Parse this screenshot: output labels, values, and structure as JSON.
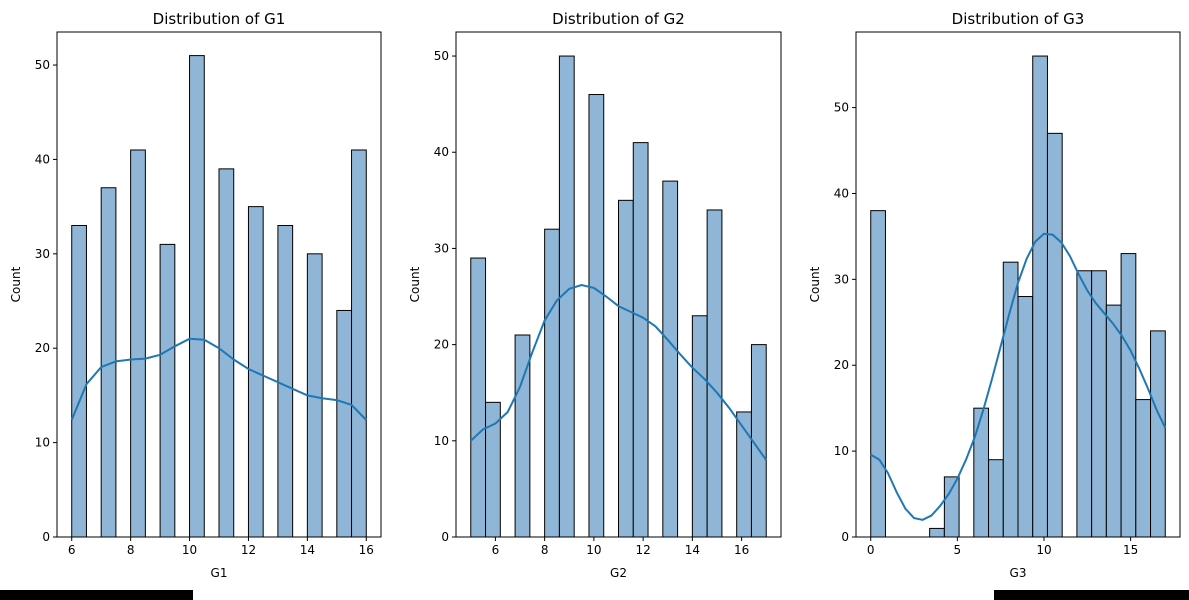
{
  "colors": {
    "bar_fill": "#8fb6d6",
    "bar_edge": "#000000",
    "kde": "#1f77b4"
  },
  "chart_data": [
    {
      "type": "bar",
      "title": "Distribution of G1",
      "xlabel": "G1",
      "ylabel": "Count",
      "xlim": [
        5.5,
        16.5
      ],
      "ylim": [
        0,
        53.5
      ],
      "xticks": [
        6,
        8,
        10,
        12,
        14,
        16
      ],
      "yticks": [
        0,
        10,
        20,
        30,
        40,
        50
      ],
      "bin_width": 0.5,
      "bins": [
        {
          "x0": 6.0,
          "count": 33
        },
        {
          "x0": 7.0,
          "count": 37
        },
        {
          "x0": 8.0,
          "count": 41
        },
        {
          "x0": 9.0,
          "count": 31
        },
        {
          "x0": 10.0,
          "count": 51
        },
        {
          "x0": 11.0,
          "count": 39
        },
        {
          "x0": 12.0,
          "count": 35
        },
        {
          "x0": 13.0,
          "count": 33
        },
        {
          "x0": 14.0,
          "count": 30
        },
        {
          "x0": 15.0,
          "count": 24
        },
        {
          "x0": 15.5,
          "count": 41
        }
      ],
      "kde": [
        [
          6,
          12.4
        ],
        [
          6.5,
          16.2
        ],
        [
          7,
          18.0
        ],
        [
          7.5,
          18.6
        ],
        [
          8,
          18.8
        ],
        [
          8.5,
          18.9
        ],
        [
          9,
          19.3
        ],
        [
          9.5,
          20.2
        ],
        [
          10,
          21.0
        ],
        [
          10.5,
          20.9
        ],
        [
          11,
          20.0
        ],
        [
          11.5,
          18.8
        ],
        [
          12,
          17.8
        ],
        [
          12.5,
          17.1
        ],
        [
          13,
          16.4
        ],
        [
          13.5,
          15.7
        ],
        [
          14,
          15.0
        ],
        [
          14.5,
          14.7
        ],
        [
          15,
          14.5
        ],
        [
          15.5,
          14.0
        ],
        [
          16,
          12.4
        ]
      ],
      "grid": false
    },
    {
      "type": "bar",
      "title": "Distribution of G2",
      "xlabel": "G2",
      "ylabel": "Count",
      "xlim": [
        4.4,
        17.6
      ],
      "ylim": [
        0,
        52.5
      ],
      "xticks": [
        6,
        8,
        10,
        12,
        14,
        16
      ],
      "yticks": [
        0,
        10,
        20,
        30,
        40,
        50
      ],
      "bin_width": 0.6,
      "bins": [
        {
          "x0": 5.0,
          "count": 29
        },
        {
          "x0": 5.6,
          "count": 14
        },
        {
          "x0": 6.8,
          "count": 21
        },
        {
          "x0": 8.0,
          "count": 32
        },
        {
          "x0": 8.6,
          "count": 50
        },
        {
          "x0": 9.8,
          "count": 46
        },
        {
          "x0": 11.0,
          "count": 35
        },
        {
          "x0": 11.6,
          "count": 41
        },
        {
          "x0": 12.8,
          "count": 37
        },
        {
          "x0": 14.0,
          "count": 23
        },
        {
          "x0": 14.6,
          "count": 34
        },
        {
          "x0": 15.8,
          "count": 13
        },
        {
          "x0": 16.4,
          "count": 20
        }
      ],
      "kde": [
        [
          5,
          10.0
        ],
        [
          5.5,
          11.2
        ],
        [
          6,
          11.8
        ],
        [
          6.5,
          13.0
        ],
        [
          7,
          15.6
        ],
        [
          7.5,
          19.2
        ],
        [
          8,
          22.5
        ],
        [
          8.5,
          24.6
        ],
        [
          9,
          25.8
        ],
        [
          9.5,
          26.2
        ],
        [
          10,
          25.9
        ],
        [
          10.5,
          25.0
        ],
        [
          11,
          24.0
        ],
        [
          11.5,
          23.4
        ],
        [
          12,
          22.8
        ],
        [
          12.5,
          21.9
        ],
        [
          13,
          20.5
        ],
        [
          13.5,
          19.0
        ],
        [
          14,
          17.6
        ],
        [
          14.5,
          16.4
        ],
        [
          15,
          15.0
        ],
        [
          15.5,
          13.4
        ],
        [
          16,
          11.6
        ],
        [
          16.5,
          9.8
        ],
        [
          17,
          8.0
        ]
      ],
      "grid": false
    },
    {
      "type": "bar",
      "title": "Distribution of G3",
      "xlabel": "G3",
      "ylabel": "Count",
      "xlim": [
        -0.85,
        17.85
      ],
      "ylim": [
        0,
        58.8
      ],
      "xticks": [
        0,
        5,
        10,
        15
      ],
      "yticks": [
        0,
        10,
        20,
        30,
        40,
        50
      ],
      "bin_width": 0.85,
      "bins": [
        {
          "x0": 0.0,
          "count": 38
        },
        {
          "x0": 3.4,
          "count": 1
        },
        {
          "x0": 4.25,
          "count": 7
        },
        {
          "x0": 5.95,
          "count": 15
        },
        {
          "x0": 6.8,
          "count": 9
        },
        {
          "x0": 7.65,
          "count": 32
        },
        {
          "x0": 8.5,
          "count": 28
        },
        {
          "x0": 9.35,
          "count": 56
        },
        {
          "x0": 10.2,
          "count": 47
        },
        {
          "x0": 11.9,
          "count": 31
        },
        {
          "x0": 12.75,
          "count": 31
        },
        {
          "x0": 13.6,
          "count": 27
        },
        {
          "x0": 14.45,
          "count": 33
        },
        {
          "x0": 15.3,
          "count": 16
        },
        {
          "x0": 16.15,
          "count": 24
        }
      ],
      "kde": [
        [
          0,
          9.6
        ],
        [
          0.5,
          9.0
        ],
        [
          1,
          7.4
        ],
        [
          1.5,
          5.2
        ],
        [
          2,
          3.3
        ],
        [
          2.5,
          2.2
        ],
        [
          3,
          2.0
        ],
        [
          3.5,
          2.5
        ],
        [
          4,
          3.6
        ],
        [
          4.5,
          5.0
        ],
        [
          5,
          6.8
        ],
        [
          5.5,
          9.0
        ],
        [
          6,
          11.6
        ],
        [
          6.5,
          14.8
        ],
        [
          7,
          18.4
        ],
        [
          7.5,
          22.2
        ],
        [
          8,
          26.0
        ],
        [
          8.5,
          29.6
        ],
        [
          9,
          32.4
        ],
        [
          9.5,
          34.4
        ],
        [
          10,
          35.3
        ],
        [
          10.5,
          35.2
        ],
        [
          11,
          34.3
        ],
        [
          11.5,
          32.7
        ],
        [
          12,
          30.6
        ],
        [
          12.5,
          28.7
        ],
        [
          13,
          27.2
        ],
        [
          13.5,
          26.0
        ],
        [
          14,
          24.8
        ],
        [
          14.5,
          23.4
        ],
        [
          15,
          21.7
        ],
        [
          15.5,
          19.6
        ],
        [
          16,
          17.3
        ],
        [
          16.5,
          14.8
        ],
        [
          17,
          12.7
        ]
      ],
      "grid": false
    }
  ]
}
